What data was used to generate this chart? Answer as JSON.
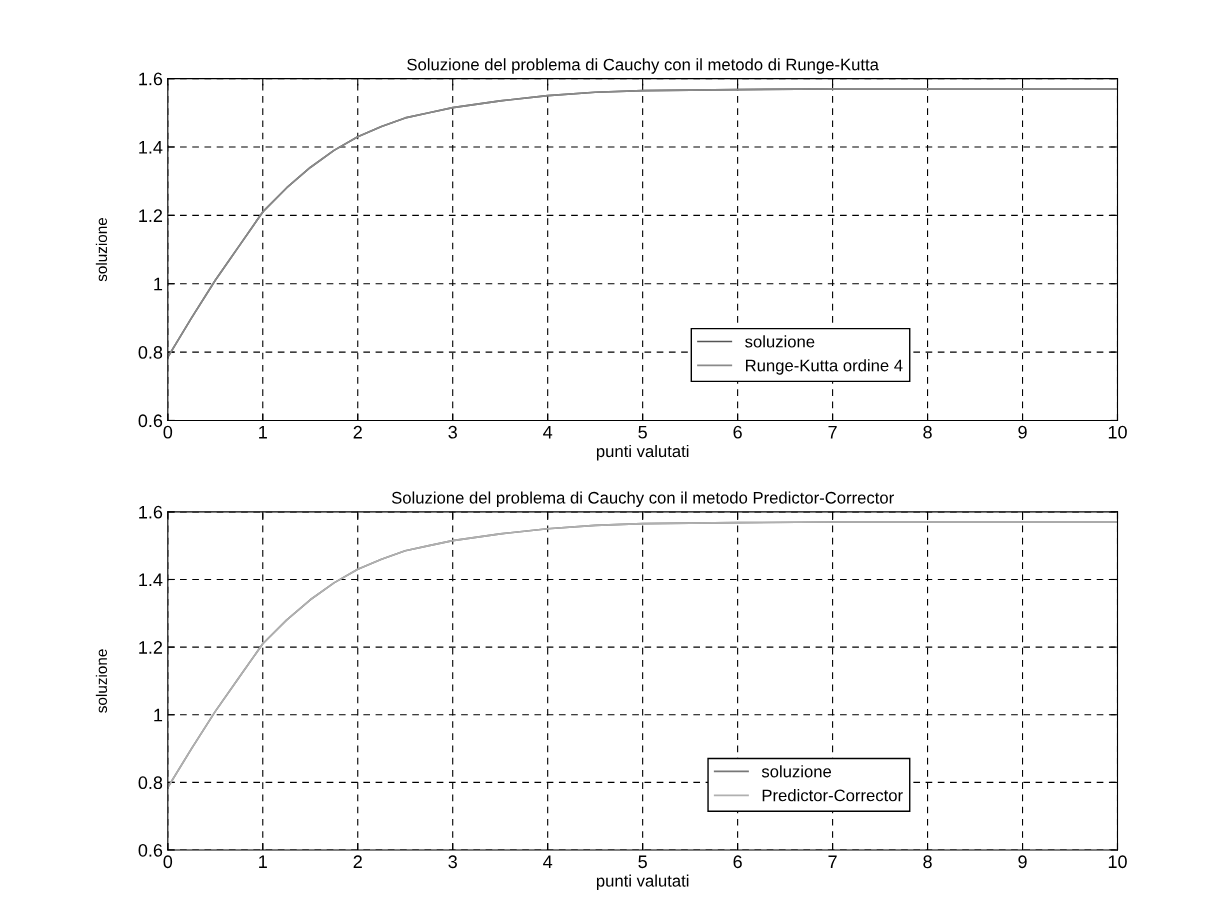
{
  "chart_data": [
    {
      "type": "line",
      "title": "Soluzione del problema di Cauchy con il metodo di Runge-Kutta",
      "xlabel": "punti valutati",
      "ylabel": "soluzione",
      "x": [
        0,
        0.25,
        0.5,
        0.75,
        1,
        1.25,
        1.5,
        1.75,
        2,
        2.25,
        2.5,
        2.75,
        3,
        3.5,
        4,
        4.5,
        5,
        6,
        7,
        8,
        9,
        10
      ],
      "series": [
        {
          "name": "soluzione",
          "color": "#555555",
          "values": [
            0.785,
            0.9,
            1.01,
            1.11,
            1.21,
            1.28,
            1.34,
            1.39,
            1.43,
            1.46,
            1.485,
            1.5,
            1.515,
            1.535,
            1.55,
            1.56,
            1.565,
            1.568,
            1.57,
            1.57,
            1.57,
            1.57
          ]
        },
        {
          "name": "Runge-Kutta ordine 4",
          "color": "#8a8a8a",
          "values": [
            0.785,
            0.9,
            1.01,
            1.11,
            1.21,
            1.28,
            1.34,
            1.39,
            1.43,
            1.46,
            1.485,
            1.5,
            1.515,
            1.535,
            1.55,
            1.56,
            1.565,
            1.568,
            1.57,
            1.57,
            1.57,
            1.57
          ]
        }
      ],
      "xlim": [
        0,
        10
      ],
      "xticks": [
        0,
        1,
        2,
        3,
        4,
        5,
        6,
        7,
        8,
        9,
        10
      ],
      "ylim": [
        0.6,
        1.6
      ],
      "yticks": [
        0.6,
        0.8,
        1,
        1.2,
        1.4,
        1.6
      ],
      "grid": true,
      "legend": "bottom right",
      "line_style": "solid",
      "marker": "none"
    },
    {
      "type": "line",
      "title": "Soluzione del problema di Cauchy con il metodo Predictor-Corrector",
      "xlabel": "punti valutati",
      "ylabel": "soluzione",
      "x": [
        0,
        0.25,
        0.5,
        0.75,
        1,
        1.25,
        1.5,
        1.75,
        2,
        2.25,
        2.5,
        2.75,
        3,
        3.5,
        4,
        4.5,
        5,
        6,
        7,
        8,
        9,
        10
      ],
      "series": [
        {
          "name": "soluzione",
          "color": "#777777",
          "values": [
            0.785,
            0.9,
            1.01,
            1.11,
            1.21,
            1.28,
            1.34,
            1.39,
            1.43,
            1.46,
            1.485,
            1.5,
            1.515,
            1.535,
            1.55,
            1.56,
            1.565,
            1.568,
            1.57,
            1.57,
            1.57,
            1.57
          ]
        },
        {
          "name": "Predictor-Corrector",
          "color": "#b0b0b0",
          "values": [
            0.785,
            0.9,
            1.01,
            1.11,
            1.21,
            1.28,
            1.34,
            1.39,
            1.43,
            1.46,
            1.485,
            1.5,
            1.515,
            1.535,
            1.55,
            1.56,
            1.565,
            1.568,
            1.57,
            1.57,
            1.57,
            1.57
          ]
        }
      ],
      "xlim": [
        0,
        10
      ],
      "xticks": [
        0,
        1,
        2,
        3,
        4,
        5,
        6,
        7,
        8,
        9,
        10
      ],
      "ylim": [
        0.6,
        1.6
      ],
      "yticks": [
        0.6,
        0.8,
        1,
        1.2,
        1.4,
        1.6
      ],
      "grid": true,
      "legend": "bottom right",
      "line_style": "solid",
      "marker": "none"
    }
  ]
}
